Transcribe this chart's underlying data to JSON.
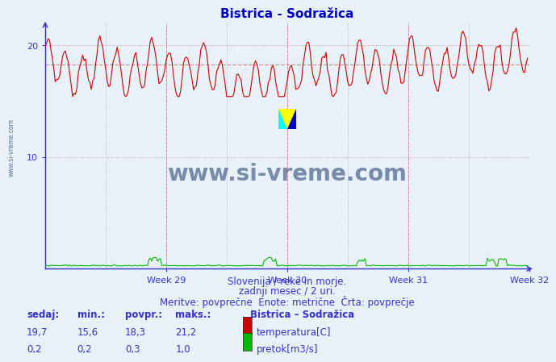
{
  "title": "Bistrica - Sodražica",
  "title_color": "#0000cc",
  "bg_color": "#e8f0f8",
  "plot_bg_color": "#e8f0f8",
  "xlim": [
    0,
    336
  ],
  "ylim": [
    0,
    22
  ],
  "yticks": [
    10,
    20
  ],
  "week_ticks": [
    84,
    168,
    252,
    336
  ],
  "week_labels": [
    "Week 29",
    "Week 30",
    "Week 31",
    "Week 32"
  ],
  "avg_temp": 18.3,
  "min_temp": 15.6,
  "max_temp": 21.2,
  "avg_flow": 0.3,
  "min_flow": 0.2,
  "max_flow": 1.0,
  "sedaj_temp": 19.7,
  "sedaj_flow": 0.2,
  "temp_color": "#cc0000",
  "flow_color": "#00bb00",
  "avg_line_color": "#cc8888",
  "axis_color": "#3333cc",
  "hgrid_color": "#cc9999",
  "vgrid_color": "#9999cc",
  "watermark_color": "#1a3a6a",
  "subtitle1": "Slovenija / reke in morje.",
  "subtitle2": "zadnji mesec / 2 uri.",
  "subtitle3": "Meritve: povprečne  Enote: metrične  Črta: povprečje",
  "legend_station": "Bistrica – Sodražica",
  "legend_temp": "temperatura[C]",
  "legend_flow": "pretok[m3/s]",
  "label_sedaj": "sedaj:",
  "label_min": "min.:",
  "label_povpr": "povpr.:",
  "label_maks": "maks.:",
  "n_points": 336,
  "flow_scale": 0.045
}
